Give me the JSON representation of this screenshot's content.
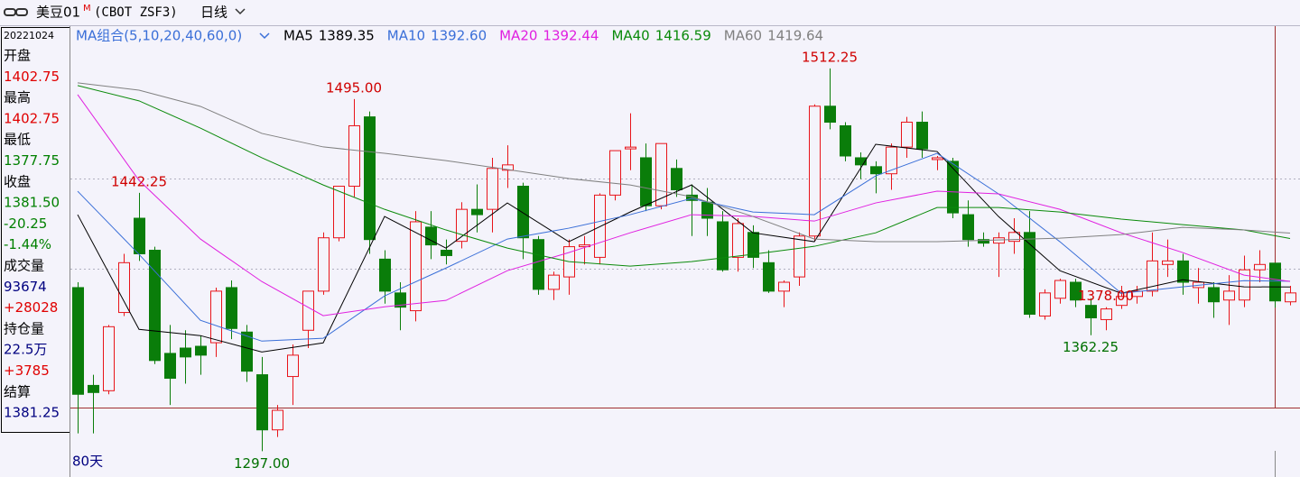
{
  "header": {
    "symbol": "美豆01",
    "badge": "M",
    "code": "(CBOT ZSF3)",
    "period": "日线",
    "ma_group": "MA组合(5,10,20,40,60,0)",
    "range": "80天"
  },
  "info_panel": {
    "date": "20221024",
    "rows": [
      {
        "text": "开盘",
        "color": "#000000"
      },
      {
        "text": "1402.75",
        "color": "#e00000"
      },
      {
        "text": "最高",
        "color": "#000000"
      },
      {
        "text": "1402.75",
        "color": "#e00000"
      },
      {
        "text": "最低",
        "color": "#000000"
      },
      {
        "text": "1377.75",
        "color": "#008000"
      },
      {
        "text": "收盘",
        "color": "#000000"
      },
      {
        "text": "1381.50",
        "color": "#008000"
      },
      {
        "text": "-20.25",
        "color": "#008000"
      },
      {
        "text": "-1.44%",
        "color": "#008000"
      },
      {
        "text": "成交量",
        "color": "#000000"
      },
      {
        "text": "93674",
        "color": "#000080"
      },
      {
        "text": "+28028",
        "color": "#e00000"
      },
      {
        "text": "持仓量",
        "color": "#000000"
      },
      {
        "text": "22.5万",
        "color": "#000080"
      },
      {
        "text": "+3785",
        "color": "#e00000"
      },
      {
        "text": "结算",
        "color": "#000000"
      },
      {
        "text": "1381.25",
        "color": "#000080"
      }
    ]
  },
  "chart_data": {
    "type": "candlestick",
    "up_color": "#e8141a",
    "down_color": "#0a7d0a",
    "ylim": [
      1283,
      1535.5
    ],
    "candles": [
      [
        1389,
        1392,
        1307,
        1329
      ],
      [
        1334,
        1340,
        1307,
        1330
      ],
      [
        1331,
        1368,
        1329,
        1367
      ],
      [
        1375,
        1408,
        1373,
        1403
      ],
      [
        1428,
        1442.25,
        1404,
        1408
      ],
      [
        1410,
        1412,
        1346,
        1348
      ],
      [
        1352,
        1368,
        1323,
        1338
      ],
      [
        1355,
        1365,
        1335,
        1350
      ],
      [
        1356,
        1362,
        1340,
        1351
      ],
      [
        1358,
        1389,
        1350,
        1387
      ],
      [
        1389,
        1393,
        1360,
        1366
      ],
      [
        1364,
        1368,
        1336,
        1342
      ],
      [
        1340,
        1350,
        1297,
        1309
      ],
      [
        1309,
        1323,
        1305,
        1320
      ],
      [
        1339,
        1357,
        1323,
        1351
      ],
      [
        1365,
        1387,
        1355,
        1387
      ],
      [
        1387,
        1420,
        1385,
        1417
      ],
      [
        1417,
        1446,
        1415,
        1446
      ],
      [
        1446,
        1495,
        1440,
        1480
      ],
      [
        1485,
        1488,
        1408,
        1416
      ],
      [
        1405,
        1410,
        1380,
        1387
      ],
      [
        1386,
        1392,
        1365,
        1378
      ],
      [
        1376,
        1432,
        1370,
        1426
      ],
      [
        1423,
        1432,
        1405,
        1413
      ],
      [
        1410,
        1416,
        1402,
        1407
      ],
      [
        1415,
        1437,
        1411,
        1433
      ],
      [
        1433,
        1447,
        1420,
        1430
      ],
      [
        1433,
        1462,
        1420,
        1456
      ],
      [
        1455,
        1469,
        1445,
        1458
      ],
      [
        1446,
        1448,
        1405,
        1417
      ],
      [
        1416,
        1418,
        1385,
        1388
      ],
      [
        1388,
        1398,
        1382,
        1396
      ],
      [
        1395,
        1416,
        1385,
        1412
      ],
      [
        1412,
        1418,
        1402,
        1413
      ],
      [
        1406,
        1442,
        1402,
        1441
      ],
      [
        1441,
        1466,
        1438,
        1466
      ],
      [
        1467,
        1487,
        1455,
        1468
      ],
      [
        1462,
        1470,
        1432,
        1435
      ],
      [
        1435,
        1470,
        1433,
        1470
      ],
      [
        1456,
        1461,
        1440,
        1444
      ],
      [
        1441,
        1447,
        1418,
        1438
      ],
      [
        1437,
        1445,
        1418,
        1428
      ],
      [
        1426,
        1432,
        1398,
        1399
      ],
      [
        1406,
        1428,
        1398,
        1425
      ],
      [
        1420,
        1424,
        1400,
        1406
      ],
      [
        1403,
        1410,
        1386,
        1387
      ],
      [
        1387,
        1393,
        1378,
        1392
      ],
      [
        1395,
        1420,
        1390,
        1418
      ],
      [
        1418,
        1492,
        1415,
        1491
      ],
      [
        1491,
        1512.25,
        1478,
        1482
      ],
      [
        1480,
        1482,
        1460,
        1463
      ],
      [
        1462,
        1465,
        1450,
        1458
      ],
      [
        1457,
        1460,
        1442,
        1453
      ],
      [
        1453,
        1470,
        1444,
        1468
      ],
      [
        1468,
        1485,
        1462,
        1482
      ],
      [
        1482,
        1488,
        1462,
        1467
      ],
      [
        1461,
        1463,
        1455,
        1462
      ],
      [
        1460,
        1462,
        1428,
        1431
      ],
      [
        1430,
        1438,
        1412,
        1416
      ],
      [
        1416,
        1420,
        1412,
        1414
      ],
      [
        1414,
        1420,
        1395,
        1417
      ],
      [
        1415,
        1428,
        1408,
        1420
      ],
      [
        1420,
        1432,
        1372,
        1374
      ],
      [
        1373,
        1388,
        1371,
        1386
      ],
      [
        1383,
        1394,
        1380,
        1393
      ],
      [
        1392,
        1394,
        1378,
        1382
      ],
      [
        1379,
        1383,
        1362.25,
        1372
      ],
      [
        1371,
        1378,
        1365,
        1377
      ],
      [
        1379,
        1390,
        1377,
        1384
      ],
      [
        1384,
        1390,
        1380,
        1387
      ],
      [
        1387,
        1420,
        1384,
        1404
      ],
      [
        1402,
        1416,
        1395,
        1404
      ],
      [
        1404,
        1408,
        1385,
        1392
      ],
      [
        1389,
        1400,
        1380,
        1392
      ],
      [
        1389,
        1392,
        1372,
        1381
      ],
      [
        1382,
        1396,
        1368,
        1387
      ],
      [
        1382,
        1407,
        1378,
        1399
      ],
      [
        1399,
        1410,
        1392,
        1402
      ],
      [
        1402.75,
        1402.75,
        1377.75,
        1381.5
      ],
      [
        1381,
        1390,
        1379,
        1386
      ]
    ],
    "x": [
      0,
      4,
      8,
      12,
      16,
      20,
      24,
      28,
      32,
      36,
      40,
      44,
      48,
      52,
      56,
      60,
      64,
      68,
      72,
      76,
      79
    ],
    "series": [
      {
        "name": "MA5",
        "last": "1389.35",
        "color": "#000000",
        "values": [
          1430,
          1365.5,
          1362,
          1352.8,
          1357.9,
          1429,
          1411.2,
          1436.6,
          1414.8,
          1431.5,
          1446.7,
          1419.8,
          1414.8,
          1469.6,
          1465.5,
          1429,
          1398.5,
          1385.8,
          1393.4,
          1389.4,
          1389.35
        ]
      },
      {
        "name": "MA10",
        "last": "1392.60",
        "color": "#3a6fd8",
        "values": [
          1443.2,
          1407.7,
          1370.6,
          1358.9,
          1360.5,
          1384.3,
          1400,
          1416.3,
          1422.4,
          1430,
          1439.1,
          1431.5,
          1430,
          1451.8,
          1464.5,
          1441.7,
          1414.8,
          1385.8,
          1389.4,
          1392.9,
          1392.6
        ]
      },
      {
        "name": "MA20",
        "last": "1392.44",
        "color": "#e020e0",
        "values": [
          1497.5,
          1449.3,
          1416.3,
          1392.4,
          1373.2,
          1378.2,
          1381.8,
          1398.5,
          1408.7,
          1419.8,
          1430,
          1429,
          1426.4,
          1436.6,
          1443.2,
          1441.7,
          1433,
          1419.8,
          1408.7,
          1396,
          1392.44
        ]
      },
      {
        "name": "MA40",
        "last": "1416.59",
        "color": "#0a8a0a",
        "values": [
          1502.6,
          1494,
          1478.7,
          1462,
          1446.7,
          1433,
          1421.4,
          1411.2,
          1403.6,
          1401.1,
          1403.6,
          1407.7,
          1412.2,
          1419.8,
          1434,
          1434,
          1431.5,
          1427.5,
          1424.4,
          1421.4,
          1416.59
        ]
      },
      {
        "name": "MA60",
        "last": "1419.64",
        "color": "#808080",
        "values": [
          1504.1,
          1500,
          1490.9,
          1475.7,
          1468.1,
          1464.5,
          1460.4,
          1455.4,
          1450.3,
          1446.7,
          1440.1,
          1429,
          1416.3,
          1414.8,
          1414.8,
          1415.8,
          1416.8,
          1418.8,
          1422.9,
          1421.4,
          1419.64
        ]
      }
    ],
    "annotations": [
      {
        "value": 1442.25,
        "label": "1442.25"
      },
      {
        "value": 1495,
        "label": "1495.00"
      },
      {
        "value": 1297,
        "label": "1297.00"
      },
      {
        "value": 1512.25,
        "label": "1512.25"
      },
      {
        "value": 1378,
        "label": "1378.00"
      },
      {
        "value": 1362.25,
        "label": "1362.25"
      }
    ]
  }
}
